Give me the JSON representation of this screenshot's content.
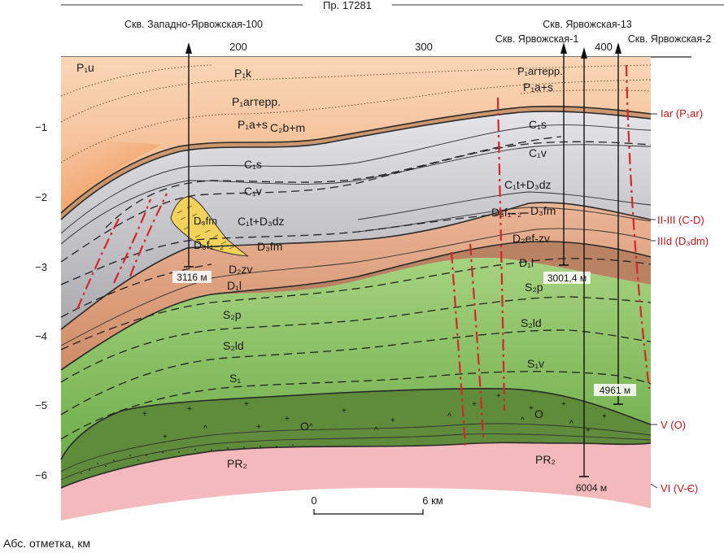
{
  "profile_label": "Пр. 17281",
  "wells": [
    {
      "name": "Скв. Западно-Ярвожская-100",
      "depth": "3116 м"
    },
    {
      "name": "Скв. Ярвожская-1",
      "depth": "3001,4 м"
    },
    {
      "name": "Скв. Ярвожская-13",
      "depth": "6004 м"
    },
    {
      "name": "Скв. Ярвожская-2",
      "depth": "4961 м"
    }
  ],
  "x_ticks": [
    "200",
    "300",
    "400"
  ],
  "y_ticks": [
    "−1",
    "−2",
    "−3",
    "−4",
    "−5",
    "−6"
  ],
  "y_axis_label": "Абс. отметка, км",
  "scale_bar": {
    "start": "0",
    "end": "6 км"
  },
  "horizons": [
    "Iar (P₁ar)",
    "II-III (C-D)",
    "IIId (D₃dm)",
    "V (O)",
    "VI (V-Є)"
  ],
  "units": {
    "p1u": "P₁u",
    "p1k": "P₁k",
    "p1ar_terr": "P₁arтерр.",
    "p1as_l": "P₁a+s",
    "c2bm": "C₂b+m",
    "c1s_l": "C₁s",
    "c1v_l": "C₁v",
    "c1t_l": "C₁t+D₃dz",
    "d3fm_a": "D₃fm",
    "d3f12_l": "D₃f₁₋₂",
    "d3fm_b": "D₃fm",
    "d2zv": "D₂zv",
    "d1l_l": "D₁l",
    "s2p_l": "S₂p",
    "s2ld_l": "S₂ld",
    "s1": "S₁",
    "o_l": "O",
    "pr2_l": "PR₂",
    "p1ar_r": "P₁arтерр.",
    "p1as_r": "P₁a+s",
    "c1s_r": "C₁s",
    "c1v_r": "C₁v",
    "c1t_r": "C₁t+D₃dz",
    "d3f12_r": "D₃f₁₋₂",
    "d3fm_r": "D₃fm",
    "d2efzv": "D₂ef-zv",
    "d1l_r": "D₁l",
    "s2p_r": "S₂p",
    "s2ld_r": "S₂ld",
    "s1v": "S₁v",
    "o_r": "O",
    "pr2_r": "PR₂"
  },
  "colors": {
    "fault": "#d6252b",
    "permian_top": "#f6c9a0",
    "carboniferous": "#c8c8cc",
    "devonian": "#d59a78",
    "silurian": "#8cc26a",
    "ordovician": "#5f8c3a",
    "proterozoic": "#f3b9bd"
  }
}
